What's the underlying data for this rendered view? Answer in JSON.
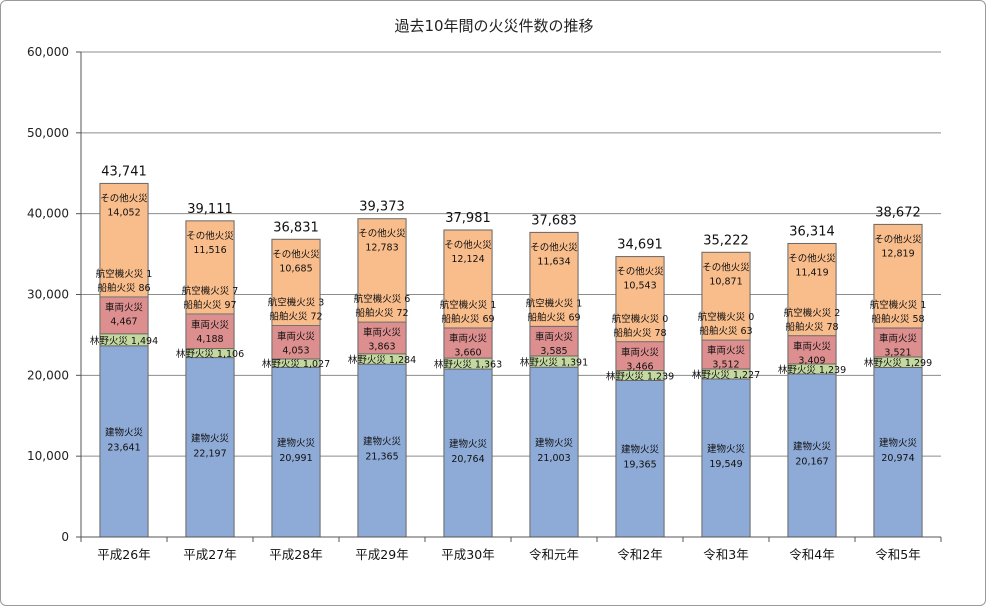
{
  "chart_data": {
    "type": "bar",
    "stacked": true,
    "title": "過去10年間の火災件数の推移",
    "categories": [
      "平成26年",
      "平成27年",
      "平成28年",
      "平成29年",
      "平成30年",
      "令和元年",
      "令和2年",
      "令和3年",
      "令和4年",
      "令和5年"
    ],
    "ylim": [
      0,
      60000
    ],
    "yticks": [
      0,
      10000,
      20000,
      30000,
      40000,
      50000,
      60000
    ],
    "ytick_labels": [
      "0",
      "10,000",
      "20,000",
      "30,000",
      "40,000",
      "50,000",
      "60,000"
    ],
    "grid": true,
    "series": [
      {
        "name": "建物火災",
        "color": "#8eaad6",
        "values": [
          23641,
          22197,
          20991,
          21365,
          20764,
          21003,
          19365,
          19549,
          20167,
          20974
        ]
      },
      {
        "name": "林野火災",
        "color": "#c4d9a0",
        "values": [
          1494,
          1106,
          1027,
          1284,
          1363,
          1391,
          1239,
          1227,
          1239,
          1299
        ]
      },
      {
        "name": "車両火災",
        "color": "#dd8f8f",
        "values": [
          4467,
          4188,
          4053,
          3863,
          3660,
          3585,
          3466,
          3512,
          3409,
          3521
        ]
      },
      {
        "name": "船舶火災",
        "color": "#dd8f8f",
        "values": [
          86,
          97,
          72,
          72,
          69,
          69,
          78,
          63,
          78,
          58
        ]
      },
      {
        "name": "航空機火災",
        "color": "#dd8f8f",
        "values": [
          1,
          7,
          3,
          6,
          1,
          1,
          0,
          0,
          2,
          1
        ]
      },
      {
        "name": "その他火災",
        "color": "#f9bd8c",
        "values": [
          14052,
          11516,
          10685,
          12783,
          12124,
          11634,
          10543,
          10871,
          11419,
          12819
        ]
      }
    ],
    "totals": [
      43741,
      39111,
      36831,
      39373,
      37981,
      37683,
      34691,
      35222,
      36314,
      38672
    ],
    "totals_labels": [
      "43,741",
      "39,111",
      "36,831",
      "39,373",
      "37,981",
      "37,683",
      "34,691",
      "35,222",
      "36,314",
      "38,672"
    ],
    "segment_labels": {
      "building": [
        "23,641",
        "22,197",
        "20,991",
        "21,365",
        "20,764",
        "21,003",
        "19,365",
        "19,549",
        "20,167",
        "20,974"
      ],
      "forest": [
        "1,494",
        "1,106",
        "1,027",
        "1,284",
        "1,363",
        "1,391",
        "1,239",
        "1,227",
        "1,239",
        "1,299"
      ],
      "vehicle": [
        "4,467",
        "4,188",
        "4,053",
        "3,863",
        "3,660",
        "3,585",
        "3,466",
        "3,512",
        "3,409",
        "3,521"
      ],
      "ship": [
        "86",
        "97",
        "72",
        "72",
        "69",
        "69",
        "78",
        "63",
        "78",
        "58"
      ],
      "aircraft": [
        "1",
        "7",
        "3",
        "6",
        "1",
        "1",
        "0",
        "0",
        "2",
        "1"
      ],
      "other": [
        "14,052",
        "11,516",
        "10,685",
        "12,783",
        "12,124",
        "11,634",
        "10,543",
        "10,871",
        "11,419",
        "12,819"
      ]
    }
  }
}
